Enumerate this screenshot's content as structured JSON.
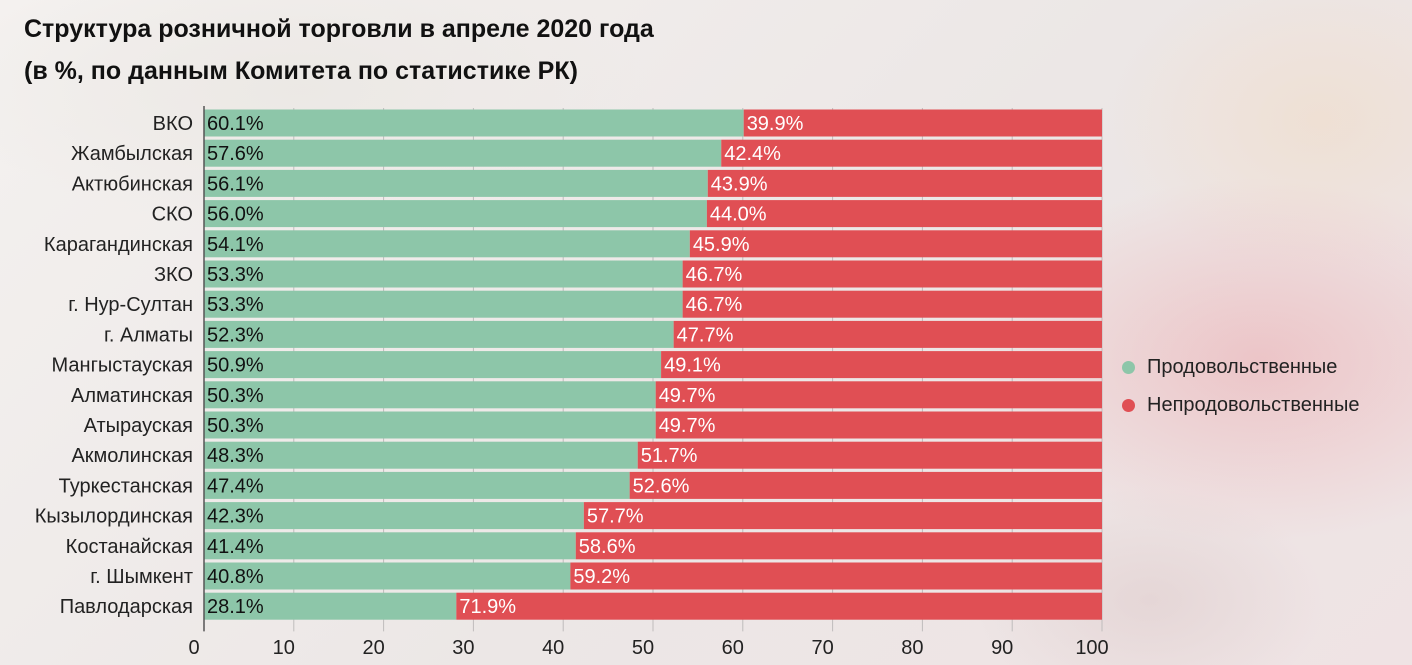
{
  "header": {
    "title_line1": "Структура розничной торговли в апреле 2020 года",
    "title_line2": "(в %, по данным Комитета по статистике РК)"
  },
  "colors": {
    "food": "#8dc6a9",
    "nonfood": "#e04f54"
  },
  "chart_data": {
    "type": "bar",
    "orientation": "horizontal",
    "stacked": true,
    "title": "Структура розничной торговли в апреле 2020 года (в %, по данным Комитета по статистике РК)",
    "categories": [
      "ВКО",
      "Жамбылская",
      "Актюбинская",
      "СКО",
      "Карагандинская",
      "ЗКО",
      "г. Нур-Султан",
      "г. Алматы",
      "Мангыстауская",
      "Алматинская",
      "Атырауская",
      "Акмолинская",
      "Туркестанская",
      "Кызылординская",
      "Костанайская",
      "г. Шымкент",
      "Павлодарская"
    ],
    "series": [
      {
        "name": "Продовольственные",
        "color": "#8dc6a9",
        "values": [
          60.1,
          57.6,
          56.1,
          56.0,
          54.1,
          53.3,
          53.3,
          52.3,
          50.9,
          50.3,
          50.3,
          48.3,
          47.4,
          42.3,
          41.4,
          40.8,
          28.1
        ]
      },
      {
        "name": "Непродовольственные",
        "color": "#e04f54",
        "values": [
          39.9,
          42.4,
          43.9,
          44.0,
          45.9,
          46.7,
          46.7,
          47.7,
          49.1,
          49.7,
          49.7,
          51.7,
          52.6,
          57.7,
          58.6,
          59.2,
          71.9
        ]
      }
    ],
    "xlim": [
      0,
      100
    ],
    "xticks": [
      0,
      10,
      20,
      30,
      40,
      50,
      60,
      70,
      80,
      90,
      100
    ],
    "grid": true,
    "legend": "right"
  }
}
